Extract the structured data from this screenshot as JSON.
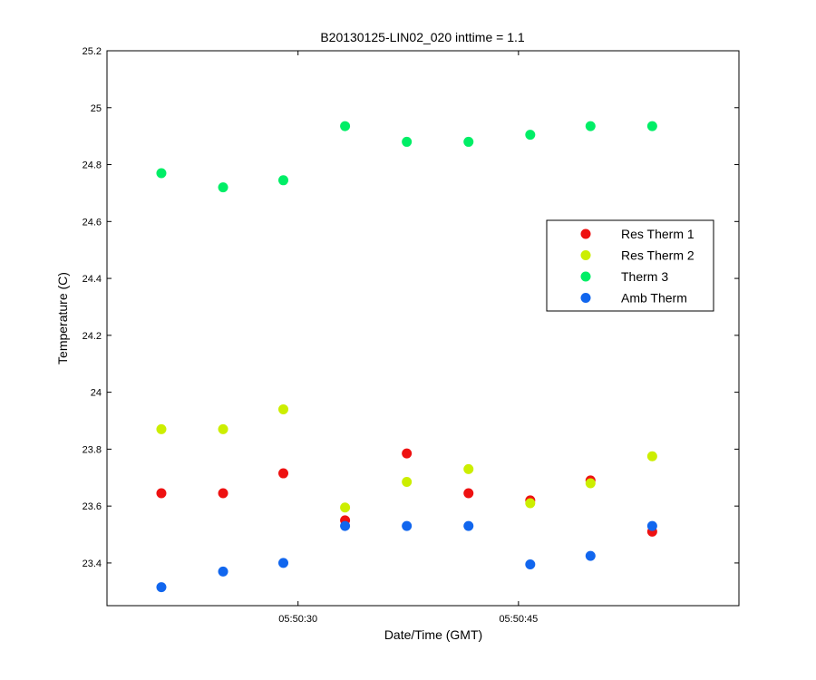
{
  "chart_data": {
    "type": "scatter",
    "title": "B20130125-LIN02_020 inttime = 1.1",
    "xlabel": "Date/Time (GMT)",
    "ylabel": "Temperature (C)",
    "xlim": [
      "05:50:17",
      "05:51:00"
    ],
    "ylim": [
      23.25,
      25.2
    ],
    "x_ticks": [
      "05:50:30",
      "05:50:45"
    ],
    "y_ticks": [
      "23.4",
      "23.6",
      "23.8",
      "24",
      "24.2",
      "24.4",
      "24.6",
      "24.8",
      "25",
      "25.2"
    ],
    "grid": false,
    "legend_position": "right",
    "x": [
      "05:50:20.7",
      "05:50:24.9",
      "05:50:29.0",
      "05:50:33.2",
      "05:50:37.4",
      "05:50:41.6",
      "05:50:45.8",
      "05:50:49.9",
      "05:50:54.1"
    ],
    "series": [
      {
        "name": "Res Therm 1",
        "color": "#ee1111",
        "y": [
          23.645,
          23.645,
          23.715,
          23.55,
          23.785,
          23.645,
          23.62,
          23.69,
          23.51
        ]
      },
      {
        "name": "Res Therm 2",
        "color": "#ccee00",
        "y": [
          23.87,
          23.87,
          23.94,
          23.595,
          23.685,
          23.73,
          23.61,
          23.68,
          23.775
        ]
      },
      {
        "name": "Therm 3",
        "color": "#00ee66",
        "y": [
          24.77,
          24.72,
          24.745,
          24.935,
          24.88,
          24.88,
          24.905,
          24.935,
          24.935
        ]
      },
      {
        "name": "Amb Therm",
        "color": "#1166ee",
        "y": [
          23.315,
          23.37,
          23.4,
          23.53,
          23.53,
          23.53,
          23.395,
          23.425,
          23.53
        ]
      }
    ]
  }
}
